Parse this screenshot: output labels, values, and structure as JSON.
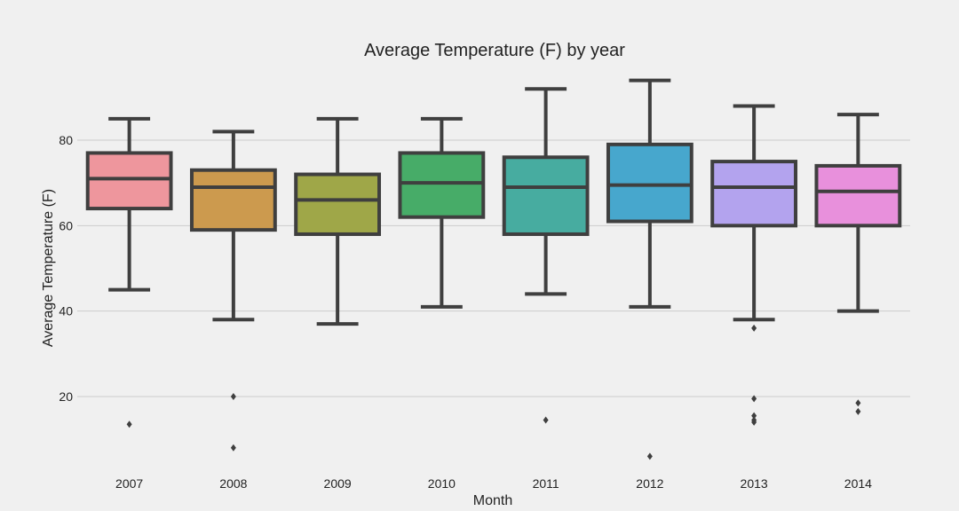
{
  "chart_data": {
    "type": "box",
    "title": "Average Temperature (F) by year",
    "xlabel": "Month",
    "ylabel": "Average Temperature (F)",
    "ylim": [
      2,
      100
    ],
    "yticks": [
      20,
      40,
      60,
      80
    ],
    "grid": "horizontal",
    "categories": [
      "2007",
      "2008",
      "2009",
      "2010",
      "2011",
      "2012",
      "2013",
      "2014"
    ],
    "colors": [
      "#ee969d",
      "#cc9a4e",
      "#9fa748",
      "#47ac68",
      "#47aca0",
      "#47a7cd",
      "#b3a3ee",
      "#e890dc"
    ],
    "boxes": [
      {
        "whisker_low": 45,
        "q1": 64,
        "median": 71,
        "q3": 77,
        "whisker_high": 85,
        "outliers": [
          13.5
        ]
      },
      {
        "whisker_low": 38,
        "q1": 59,
        "median": 69,
        "q3": 73,
        "whisker_high": 82,
        "outliers": [
          20,
          8
        ]
      },
      {
        "whisker_low": 37,
        "q1": 58,
        "median": 66,
        "q3": 72,
        "whisker_high": 85,
        "outliers": []
      },
      {
        "whisker_low": 41,
        "q1": 62,
        "median": 70,
        "q3": 77,
        "whisker_high": 85,
        "outliers": []
      },
      {
        "whisker_low": 44,
        "q1": 58,
        "median": 69,
        "q3": 76,
        "whisker_high": 92,
        "outliers": [
          14.5
        ]
      },
      {
        "whisker_low": 41,
        "q1": 61,
        "median": 69.5,
        "q3": 79,
        "whisker_high": 94,
        "outliers": [
          6
        ]
      },
      {
        "whisker_low": 38,
        "q1": 60,
        "median": 69,
        "q3": 75,
        "whisker_high": 88,
        "outliers": [
          36,
          19.5,
          15.5,
          14.5,
          14
        ]
      },
      {
        "whisker_low": 40,
        "q1": 60,
        "median": 68,
        "q3": 74,
        "whisker_high": 86,
        "outliers": [
          18.5,
          16.5
        ]
      }
    ]
  }
}
